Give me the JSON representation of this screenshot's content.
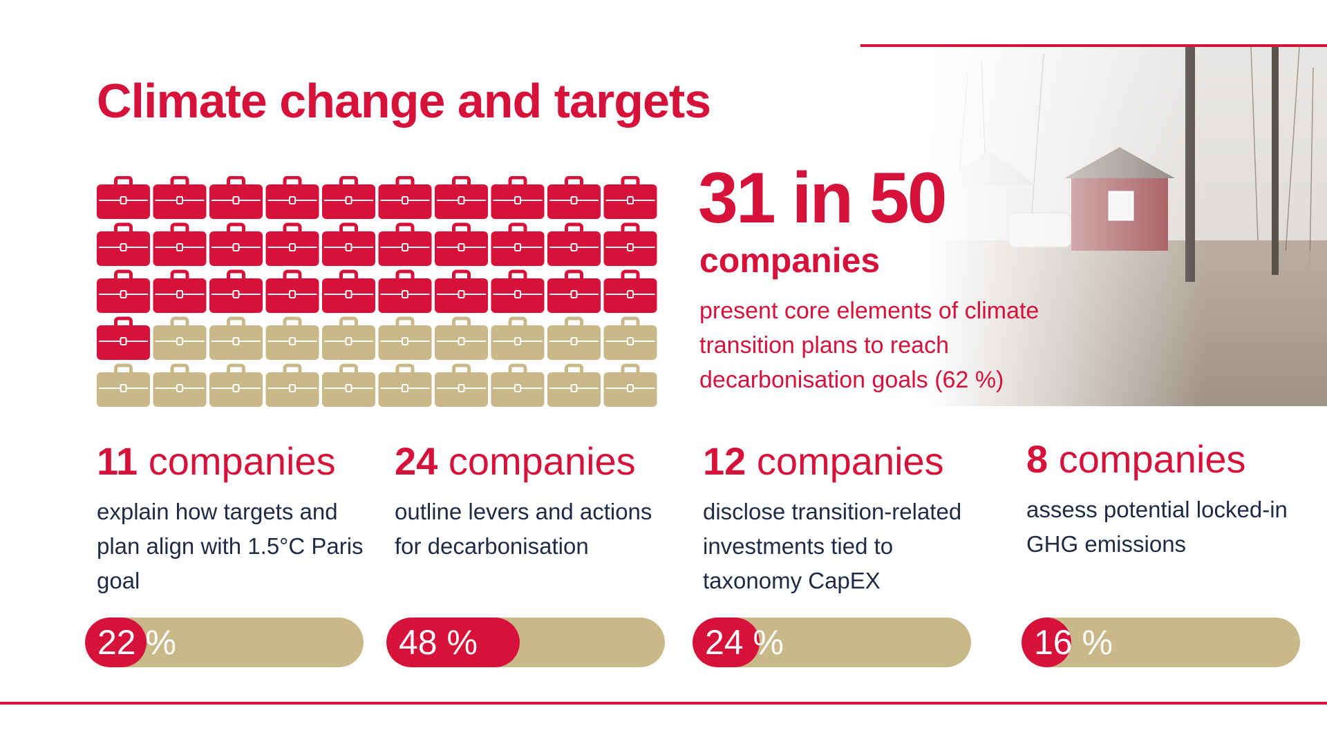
{
  "title": "Climate change and targets",
  "headline": {
    "value": "31 in 50",
    "unit": "companies",
    "description": "present core elements of climate transition plans to reach decarbonisation goals (62 %)"
  },
  "colors": {
    "accent": "#d6113a",
    "neutral": "#c9b888",
    "text": "#1f2a44"
  },
  "chart_data": [
    {
      "type": "pictogram",
      "icon": "briefcase-icon",
      "total": 50,
      "highlighted": 31,
      "columns": 10
    },
    {
      "type": "bar",
      "categories": [
        "explain how targets and plan align with 1.5°C Paris goal",
        "outline levers and actions for decarbonisation",
        "disclose transition-related investments tied to taxonomy CapEX",
        "assess potential locked-in GHG emissions"
      ],
      "series": [
        {
          "values": [
            22,
            48,
            24,
            16
          ]
        }
      ],
      "ylim": [
        0,
        100
      ]
    }
  ],
  "stats": [
    {
      "number": "11",
      "unit": "companies",
      "description": "explain how targets and plan align with 1.5°C Paris goal",
      "percent_label": "22 %",
      "percent": 22
    },
    {
      "number": "24",
      "unit": "companies",
      "description": "outline levers and actions for decarbonisation",
      "percent_label": "48 %",
      "percent": 48
    },
    {
      "number": "12",
      "unit": "companies",
      "description": "disclose transition-related investments tied to taxonomy CapEX",
      "percent_label": "24 %",
      "percent": 24
    },
    {
      "number": "8",
      "unit": "companies",
      "description": "assess potential locked-in GHG emissions",
      "percent_label": "16 %",
      "percent": 16
    }
  ]
}
